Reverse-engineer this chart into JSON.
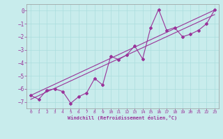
{
  "xlabel": "Windchill (Refroidissement éolien,°C)",
  "bg_color": "#c8ecec",
  "grid_color": "#aadddd",
  "line_color": "#993399",
  "xlim": [
    -0.5,
    23.5
  ],
  "ylim": [
    -7.5,
    0.5
  ],
  "xticks": [
    0,
    1,
    2,
    3,
    4,
    5,
    6,
    7,
    8,
    9,
    10,
    11,
    12,
    13,
    14,
    15,
    16,
    17,
    18,
    19,
    20,
    21,
    22,
    23
  ],
  "yticks": [
    0,
    -1,
    -2,
    -3,
    -4,
    -5,
    -6,
    -7
  ],
  "scatter_x": [
    0,
    1,
    2,
    3,
    4,
    5,
    6,
    7,
    8,
    9,
    10,
    11,
    12,
    13,
    14,
    15,
    16,
    17,
    18,
    19,
    20,
    21,
    22,
    23
  ],
  "scatter_y": [
    -6.5,
    -6.8,
    -6.1,
    -6.0,
    -6.2,
    -7.1,
    -6.6,
    -6.3,
    -5.2,
    -5.7,
    -3.5,
    -3.75,
    -3.4,
    -2.7,
    -3.7,
    -1.3,
    0.1,
    -1.5,
    -1.3,
    -2.0,
    -1.8,
    -1.5,
    -1.0,
    0.05
  ],
  "trend1_x": [
    0,
    23
  ],
  "trend1_y": [
    -6.5,
    0.05
  ],
  "trend2_x": [
    0,
    23
  ],
  "trend2_y": [
    -6.8,
    -0.3
  ]
}
